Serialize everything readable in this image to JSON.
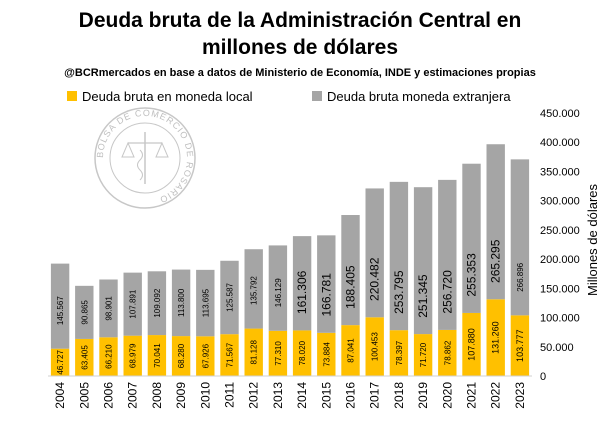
{
  "chart_data": {
    "type": "bar",
    "stacked": true,
    "title_line1": "Deuda bruta de la Administración Central en",
    "title_line2": "millones de dólares",
    "subtitle": "@BCRmercados en base a datos de Ministerio de Economía, INDE y estimaciones propias",
    "ylabel": "Millones de dólares",
    "ylim": [
      0,
      450000
    ],
    "yticks": [
      0,
      50000,
      100000,
      150000,
      200000,
      250000,
      300000,
      350000,
      400000,
      450000
    ],
    "ytick_labels": [
      "0",
      "50.000",
      "100.000",
      "150.000",
      "200.000",
      "250.000",
      "300.000",
      "350.000",
      "400.000",
      "450.000"
    ],
    "legend_position": "top",
    "categories": [
      "2004",
      "2005",
      "2006",
      "2007",
      "2008",
      "2009",
      "2010",
      "2011",
      "2012",
      "2013",
      "2014",
      "2015",
      "2016",
      "2017",
      "2018",
      "2019",
      "2020",
      "2021",
      "2022",
      "2023"
    ],
    "series": [
      {
        "name": "Deuda bruta en moneda local",
        "color": "#FFC000",
        "values": [
          46727,
          63405,
          66210,
          68979,
          70041,
          68280,
          67926,
          71567,
          81128,
          77310,
          78020,
          73884,
          87041,
          100453,
          78397,
          71720,
          78862,
          107880,
          131260,
          103777
        ],
        "labels": [
          "46.727",
          "63.405",
          "66.210",
          "68.979",
          "70.041",
          "68.280",
          "67.926",
          "71.567",
          "81.128",
          "77.310",
          "78.020",
          "73.884",
          "87.041",
          "100.453",
          "78.397",
          "71.720",
          "78.862",
          "107.880",
          "131.260",
          "103.777"
        ]
      },
      {
        "name": "Deuda bruta moneda extranjera",
        "color": "#A5A5A5",
        "values": [
          145567,
          90865,
          98901,
          107891,
          109092,
          113800,
          113695,
          125587,
          135792,
          146129,
          161306,
          166781,
          188405,
          220482,
          253795,
          251345,
          256720,
          255353,
          265295,
          266896
        ],
        "labels": [
          "145.567",
          "90.865",
          "98.901",
          "107.891",
          "109.092",
          "113.800",
          "113.695",
          "125.587",
          "135.792",
          "146.129",
          "161.306",
          "166.781",
          "188.405",
          "220.482",
          "253.795",
          "251.345",
          "256.720",
          "255.353",
          "265.295",
          "266.896"
        ]
      }
    ],
    "grid": false
  },
  "watermark": {
    "text": "BOLSA DE COMERCIO DE ROSARIO"
  }
}
